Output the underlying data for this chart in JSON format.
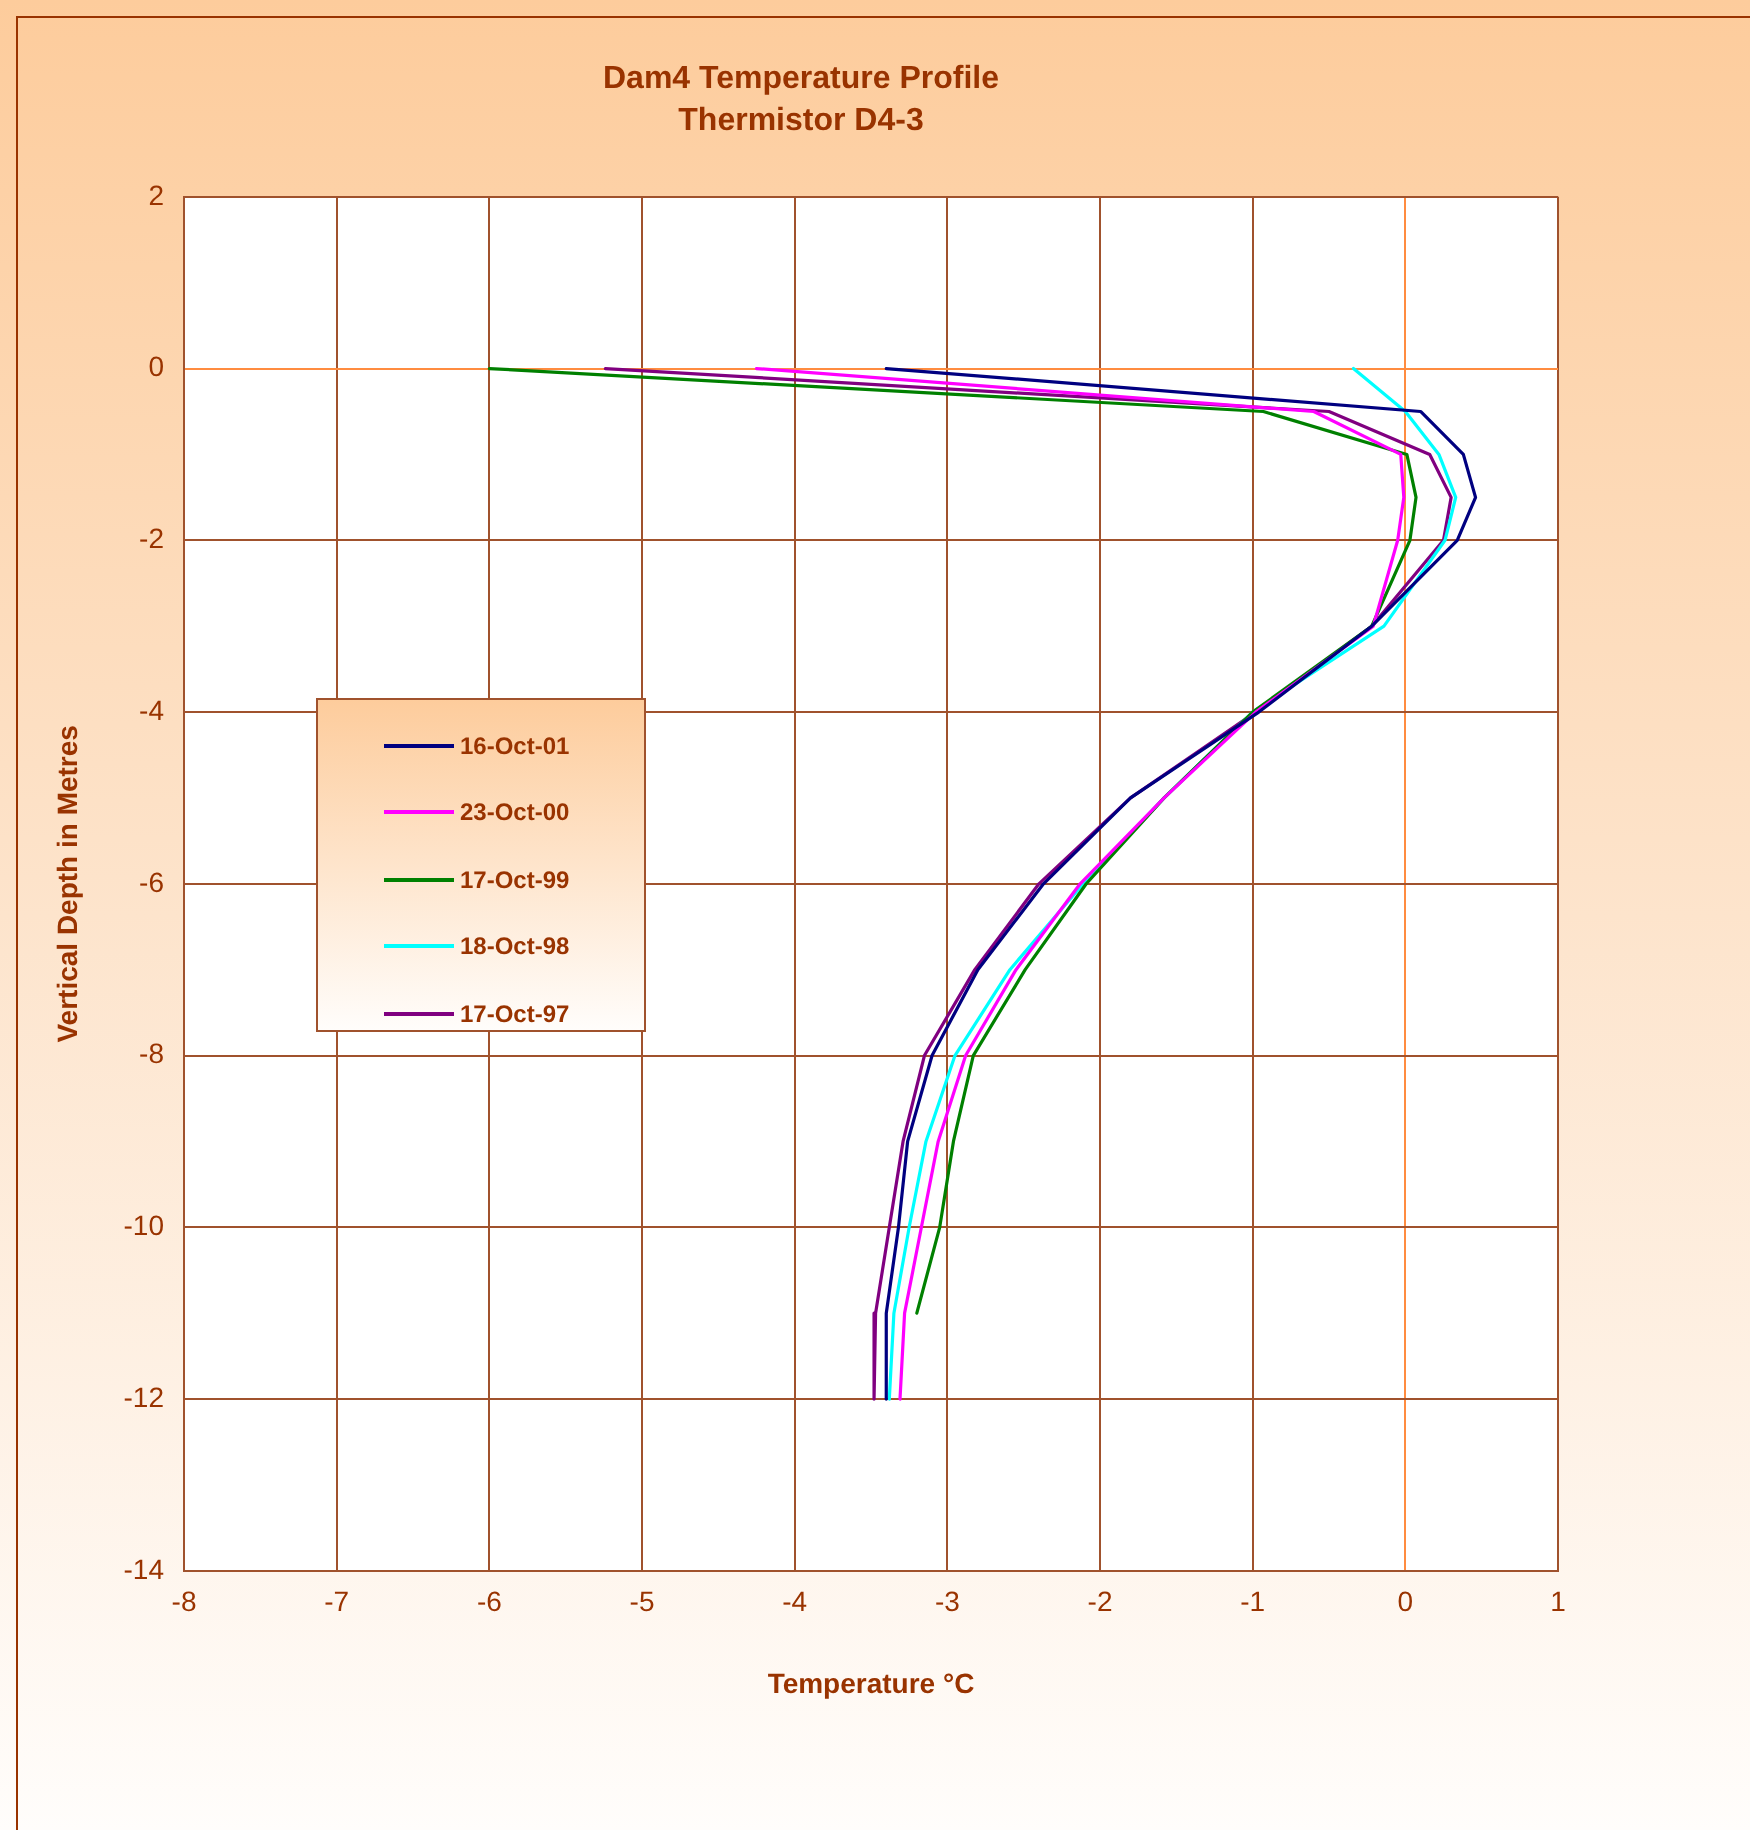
{
  "chart_data": {
    "type": "line",
    "title": "Dam4 Temperature Profile",
    "subtitle": "Thermistor D4-3",
    "xlabel": "Temperature °C",
    "ylabel": "Vertical Depth in Metres",
    "xlim": [
      -8,
      1
    ],
    "xticks": [
      -8,
      -7,
      -6,
      -5,
      -4,
      -3,
      -2,
      -1,
      0,
      1
    ],
    "ylim": [
      -14,
      2
    ],
    "yticks": [
      -14,
      -12,
      -10,
      -8,
      -6,
      -4,
      -2,
      0,
      2
    ],
    "grid": true,
    "legend": "left",
    "marker": "none",
    "line_style": "solid",
    "series": [
      {
        "name": "16-Oct-01",
        "color": "#000080",
        "x": [
          -3.4,
          0.1,
          0.38,
          0.46,
          0.34,
          -0.22,
          -0.96,
          -1.8,
          -2.37,
          -2.8,
          -3.1,
          -3.26,
          -3.32,
          -3.4,
          -3.4
        ],
        "values": [
          0,
          -0.5,
          -1,
          -1.5,
          -2,
          -3,
          -4,
          -5,
          -6,
          -7,
          -8,
          -9,
          -10,
          -11,
          -12
        ]
      },
      {
        "name": "23-Oct-00",
        "color": "#ff00ff",
        "x": [
          -4.25,
          -0.6,
          -0.03,
          -0.01,
          -0.05,
          -0.21,
          -0.98,
          -1.58,
          -2.13,
          -2.55,
          -2.88,
          -3.06,
          -3.17,
          -3.28,
          -3.31
        ],
        "values": [
          0,
          -0.5,
          -1,
          -1.5,
          -2,
          -3,
          -4,
          -5,
          -6,
          -7,
          -8,
          -9,
          -10,
          -11,
          -12
        ]
      },
      {
        "name": "17-Oct-99",
        "color": "#008000",
        "x": [
          -6.0,
          -0.93,
          0.01,
          0.07,
          0.03,
          -0.22,
          -1.0,
          -1.58,
          -2.09,
          -2.49,
          -2.83,
          -2.96,
          -3.05,
          -3.2
        ],
        "values": [
          0,
          -0.5,
          -1,
          -1.5,
          -2,
          -3,
          -4,
          -5,
          -6,
          -7,
          -8,
          -9,
          -10,
          -11
        ]
      },
      {
        "name": "18-Oct-98",
        "color": "#00ffff",
        "x": [
          -0.34,
          0.0,
          0.22,
          0.33,
          0.26,
          -0.14,
          -1.0,
          -1.58,
          -2.11,
          -2.59,
          -2.95,
          -3.14,
          -3.25,
          -3.35,
          -3.38
        ],
        "values": [
          0,
          -0.5,
          -1,
          -1.5,
          -2,
          -3,
          -4,
          -5,
          -6,
          -7,
          -8,
          -9,
          -10,
          -11,
          -12
        ]
      },
      {
        "name": "17-Oct-97",
        "color": "#800080",
        "x": [
          -5.24,
          -0.5,
          0.16,
          0.3,
          0.25,
          -0.22,
          -0.98,
          -1.8,
          -2.4,
          -2.82,
          -3.15,
          -3.29,
          -3.38,
          -3.47,
          -3.48
        ],
        "values": [
          0,
          -0.5,
          -1,
          -1.5,
          -2,
          -3,
          -4,
          -5,
          -6,
          -7,
          -8,
          -9,
          -10,
          -11,
          -12
        ]
      }
    ]
  }
}
